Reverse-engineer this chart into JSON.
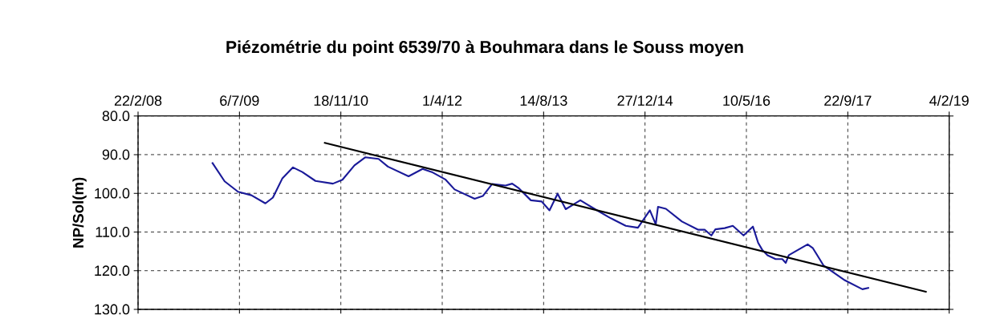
{
  "chart_data": {
    "type": "line",
    "title": "Piézométrie  du point 6539/70 à Bouhmara dans  le Souss moyen",
    "ylabel": "NP/Sol(m)",
    "xlim": [
      "2008-02-22",
      "2019-02-04"
    ],
    "xticks": [
      {
        "value": "2008-02-22",
        "label": "22/2/08"
      },
      {
        "value": "2009-07-06",
        "label": "6/7/09"
      },
      {
        "value": "2010-11-18",
        "label": "18/11/10"
      },
      {
        "value": "2012-04-01",
        "label": "1/4/12"
      },
      {
        "value": "2013-08-14",
        "label": "14/8/13"
      },
      {
        "value": "2014-12-27",
        "label": "27/12/14"
      },
      {
        "value": "2016-05-10",
        "label": "10/5/16"
      },
      {
        "value": "2017-09-22",
        "label": "22/9/17"
      },
      {
        "value": "2019-02-04",
        "label": "4/2/19"
      }
    ],
    "ylim": [
      130,
      80
    ],
    "yticks": [
      {
        "value": 80,
        "label": "80.0"
      },
      {
        "value": 90,
        "label": "90.0"
      },
      {
        "value": 100,
        "label": "100.0"
      },
      {
        "value": 110,
        "label": "110.0"
      },
      {
        "value": 120,
        "label": "120.0"
      },
      {
        "value": 130,
        "label": "130.0"
      }
    ],
    "grid": true,
    "series": [
      {
        "color": "#1a1a99",
        "x": [
          "2009-02-21",
          "2009-04-24",
          "2009-06-29",
          "2009-09-03",
          "2009-11-11",
          "2009-12-18",
          "2010-02-02",
          "2010-03-27",
          "2010-05-12",
          "2010-07-16",
          "2010-10-10",
          "2010-11-26",
          "2011-01-24",
          "2011-03-18",
          "2011-05-23",
          "2011-07-08",
          "2011-10-18",
          "2011-12-26",
          "2012-02-10",
          "2012-04-16",
          "2012-06-01",
          "2012-09-08",
          "2012-10-18",
          "2012-12-03",
          "2013-02-07",
          "2013-03-12",
          "2013-04-14",
          "2013-06-12",
          "2013-08-04",
          "2013-09-12",
          "2013-10-22",
          "2013-12-01",
          "2014-02-11",
          "2014-04-18",
          "2014-07-06",
          "2014-09-23",
          "2014-11-22",
          "2015-01-20",
          "2015-02-18",
          "2015-03-01",
          "2015-04-09",
          "2015-06-27",
          "2015-09-14",
          "2015-10-17",
          "2015-11-19",
          "2015-12-09",
          "2016-01-24",
          "2016-03-04",
          "2016-04-26",
          "2016-06-11",
          "2016-07-07",
          "2016-07-27",
          "2016-08-22",
          "2016-10-01",
          "2016-11-03",
          "2016-11-20",
          "2016-12-05",
          "2017-03-08",
          "2017-04-03",
          "2017-05-26",
          "2017-09-08",
          "2017-12-03",
          "2018-01-05"
        ],
        "values": [
          92.0,
          96.9,
          99.6,
          100.5,
          102.6,
          101.1,
          96.2,
          93.3,
          94.5,
          96.8,
          97.5,
          96.5,
          92.8,
          90.7,
          91.1,
          93.1,
          95.6,
          93.7,
          94.5,
          96.4,
          99.0,
          101.4,
          100.7,
          97.6,
          98.0,
          97.5,
          98.7,
          101.8,
          102.1,
          104.4,
          100.1,
          104.1,
          101.8,
          103.9,
          106.3,
          108.4,
          108.9,
          104.4,
          108.0,
          103.5,
          104.0,
          107.3,
          109.4,
          109.4,
          110.9,
          109.3,
          109.0,
          108.4,
          110.9,
          108.6,
          112.8,
          114.6,
          116.0,
          117.0,
          117.0,
          118.0,
          116.0,
          113.2,
          114.2,
          118.7,
          122.5,
          124.8,
          124.4
        ]
      },
      {
        "color": "#000000",
        "x": [
          "2010-08-27",
          "2018-10-16"
        ],
        "values": [
          86.9,
          125.5
        ]
      }
    ]
  }
}
